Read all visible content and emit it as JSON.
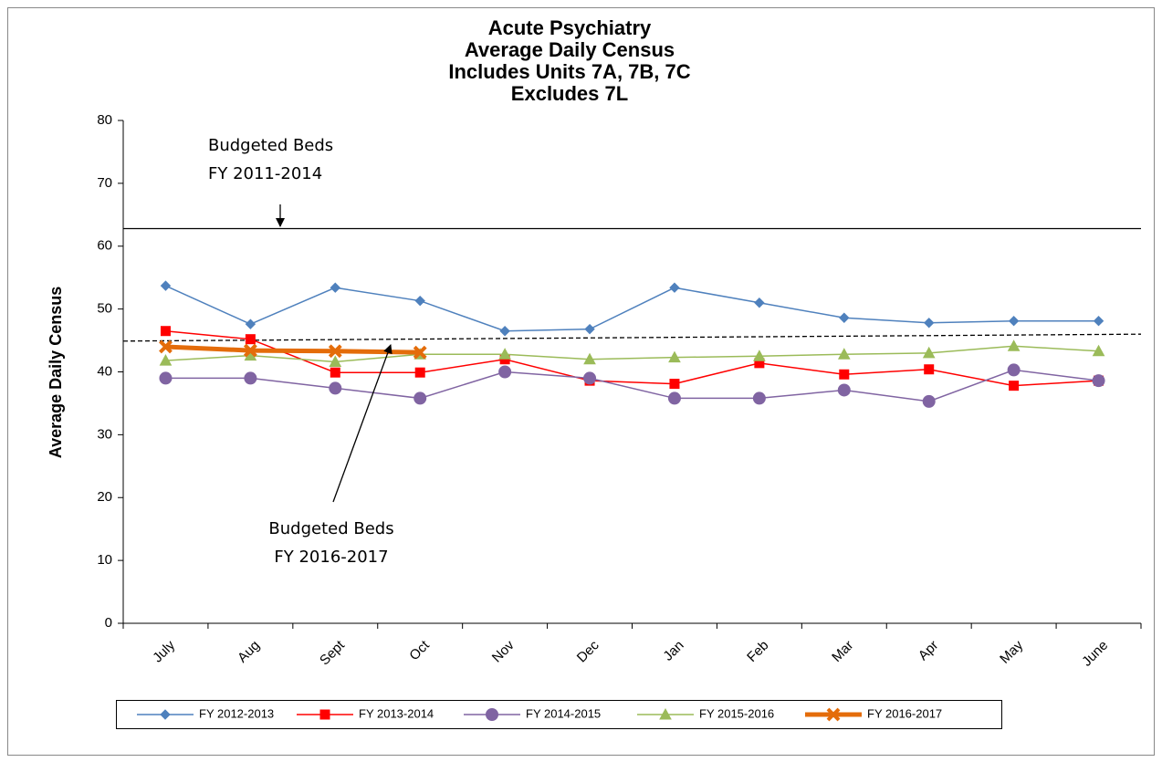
{
  "chart_data": {
    "type": "line",
    "title": [
      "Acute Psychiatry",
      "Average Daily Census",
      "Includes Units 7A, 7B, 7C",
      "Excludes 7L"
    ],
    "y_label": "Average Daily Census",
    "categories": [
      "July",
      "Aug",
      "Sept",
      "Oct",
      "Nov",
      "Dec",
      "Jan",
      "Feb",
      "Mar",
      "Apr",
      "May",
      "June"
    ],
    "series": [
      {
        "name": "FY 2012-2013",
        "color": "#4f81bd",
        "marker": "diamond",
        "values": [
          53.7,
          47.6,
          53.4,
          51.3,
          46.5,
          46.8,
          53.4,
          51.0,
          48.6,
          47.8,
          48.1,
          48.1
        ]
      },
      {
        "name": "FY 2013-2014",
        "color": "#ff0000",
        "marker": "square",
        "values": [
          46.5,
          45.2,
          39.9,
          39.9,
          42.0,
          38.6,
          38.1,
          41.4,
          39.6,
          40.4,
          37.8,
          38.6
        ]
      },
      {
        "name": "FY 2014-2015",
        "color": "#8064a2",
        "marker": "circle",
        "values": [
          39.0,
          39.0,
          37.4,
          35.8,
          40.0,
          39.0,
          35.8,
          35.8,
          37.1,
          35.3,
          40.3,
          38.6
        ]
      },
      {
        "name": "FY 2015-2016",
        "color": "#9bbb59",
        "marker": "triangle",
        "values": [
          41.8,
          42.6,
          41.6,
          42.8,
          42.8,
          42.0,
          42.3,
          42.5,
          42.8,
          43.0,
          44.1,
          43.3
        ]
      },
      {
        "name": "FY 2016-2017",
        "color": "#e46c0a",
        "marker": "x",
        "values": [
          44.0,
          43.4,
          43.3,
          43.1,
          null,
          null,
          null,
          null,
          null,
          null,
          null,
          null
        ]
      }
    ],
    "reference_lines": [
      {
        "style": "solid",
        "values": [
          62.8,
          62.8
        ]
      },
      {
        "style": "dashed",
        "values": [
          44.9,
          46.0
        ]
      }
    ],
    "annotations": [
      {
        "lines": [
          "Budgeted Beds",
          "FY 2011-2014"
        ]
      },
      {
        "lines": [
          "Budgeted Beds",
          "FY 2016-2017"
        ]
      }
    ],
    "ylim": [
      0,
      80
    ],
    "yticks": [
      0,
      10,
      20,
      30,
      40,
      50,
      60,
      70,
      80
    ],
    "legend": "bottom"
  }
}
